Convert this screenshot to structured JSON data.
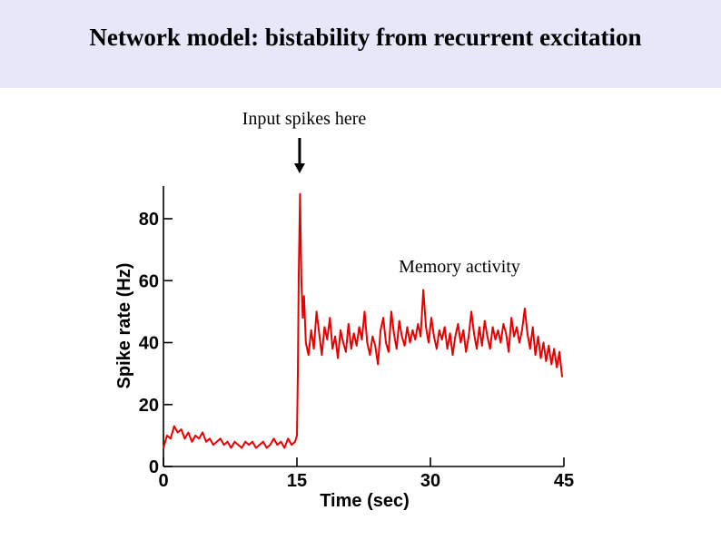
{
  "slide": {
    "title": "Network model: bistability from recurrent excitation",
    "input_annotation": "Input spikes here",
    "memory_annotation": "Memory activity",
    "colors": {
      "band": "#e6e8fa",
      "trace": "#e80000",
      "axis": "#000000"
    }
  },
  "chart_data": {
    "type": "line",
    "title": "",
    "xlabel": "Time (sec)",
    "ylabel": "Spike rate (Hz)",
    "xlim": [
      0,
      45
    ],
    "ylim": [
      0,
      90
    ],
    "x_ticks": [
      0,
      15,
      30,
      45
    ],
    "x_tick_labels": [
      "0",
      "15",
      "30",
      "45"
    ],
    "y_ticks": [
      0,
      20,
      40,
      60,
      80
    ],
    "y_tick_labels": [
      "0",
      "20",
      "40",
      "60",
      "80"
    ],
    "grid": false,
    "annotations": [
      {
        "text": "Input spikes here",
        "x": 15.3,
        "kind": "arrow-down"
      },
      {
        "text": "Memory activity",
        "kind": "label"
      }
    ],
    "series": [
      {
        "name": "Spike rate",
        "color": "#e80000",
        "points": [
          [
            0.0,
            6
          ],
          [
            0.4,
            10
          ],
          [
            0.8,
            9
          ],
          [
            1.2,
            13
          ],
          [
            1.6,
            11
          ],
          [
            2.0,
            12
          ],
          [
            2.4,
            9
          ],
          [
            2.8,
            11
          ],
          [
            3.2,
            8
          ],
          [
            3.6,
            10
          ],
          [
            4.0,
            9
          ],
          [
            4.4,
            11
          ],
          [
            4.8,
            8
          ],
          [
            5.2,
            9
          ],
          [
            5.6,
            7
          ],
          [
            6.0,
            8
          ],
          [
            6.4,
            9
          ],
          [
            6.8,
            7
          ],
          [
            7.2,
            8
          ],
          [
            7.6,
            6
          ],
          [
            8.0,
            8
          ],
          [
            8.4,
            7
          ],
          [
            8.8,
            6
          ],
          [
            9.2,
            8
          ],
          [
            9.6,
            7
          ],
          [
            10.0,
            8
          ],
          [
            10.4,
            6
          ],
          [
            10.8,
            7
          ],
          [
            11.2,
            8
          ],
          [
            11.6,
            6
          ],
          [
            12.0,
            7
          ],
          [
            12.4,
            9
          ],
          [
            12.8,
            7
          ],
          [
            13.2,
            8
          ],
          [
            13.6,
            6
          ],
          [
            14.0,
            9
          ],
          [
            14.4,
            7
          ],
          [
            14.8,
            8
          ],
          [
            15.0,
            10
          ],
          [
            15.1,
            30
          ],
          [
            15.2,
            62
          ],
          [
            15.35,
            88
          ],
          [
            15.5,
            60
          ],
          [
            15.65,
            48
          ],
          [
            15.8,
            55
          ],
          [
            16.0,
            40
          ],
          [
            16.3,
            36
          ],
          [
            16.6,
            44
          ],
          [
            16.9,
            38
          ],
          [
            17.2,
            50
          ],
          [
            17.5,
            43
          ],
          [
            17.8,
            36
          ],
          [
            18.1,
            45
          ],
          [
            18.4,
            41
          ],
          [
            18.7,
            48
          ],
          [
            19.0,
            38
          ],
          [
            19.3,
            42
          ],
          [
            19.6,
            35
          ],
          [
            19.9,
            44
          ],
          [
            20.2,
            40
          ],
          [
            20.5,
            37
          ],
          [
            20.8,
            46
          ],
          [
            21.1,
            38
          ],
          [
            21.4,
            43
          ],
          [
            21.7,
            39
          ],
          [
            22.0,
            45
          ],
          [
            22.3,
            41
          ],
          [
            22.6,
            50
          ],
          [
            22.9,
            40
          ],
          [
            23.2,
            36
          ],
          [
            23.5,
            42
          ],
          [
            23.8,
            39
          ],
          [
            24.1,
            33
          ],
          [
            24.4,
            44
          ],
          [
            24.7,
            48
          ],
          [
            25.0,
            40
          ],
          [
            25.3,
            37
          ],
          [
            25.6,
            50
          ],
          [
            25.9,
            43
          ],
          [
            26.2,
            38
          ],
          [
            26.5,
            47
          ],
          [
            26.8,
            42
          ],
          [
            27.1,
            39
          ],
          [
            27.4,
            45
          ],
          [
            27.7,
            40
          ],
          [
            28.0,
            44
          ],
          [
            28.3,
            41
          ],
          [
            28.6,
            46
          ],
          [
            28.9,
            42
          ],
          [
            29.2,
            57
          ],
          [
            29.5,
            45
          ],
          [
            29.8,
            40
          ],
          [
            30.1,
            48
          ],
          [
            30.4,
            42
          ],
          [
            30.7,
            38
          ],
          [
            31.0,
            44
          ],
          [
            31.3,
            41
          ],
          [
            31.6,
            45
          ],
          [
            31.9,
            38
          ],
          [
            32.2,
            43
          ],
          [
            32.5,
            36
          ],
          [
            32.8,
            42
          ],
          [
            33.1,
            46
          ],
          [
            33.4,
            40
          ],
          [
            33.7,
            44
          ],
          [
            34.0,
            37
          ],
          [
            34.3,
            42
          ],
          [
            34.6,
            50
          ],
          [
            34.9,
            43
          ],
          [
            35.2,
            38
          ],
          [
            35.5,
            45
          ],
          [
            35.8,
            39
          ],
          [
            36.1,
            47
          ],
          [
            36.4,
            42
          ],
          [
            36.7,
            38
          ],
          [
            37.0,
            45
          ],
          [
            37.3,
            41
          ],
          [
            37.6,
            44
          ],
          [
            37.9,
            40
          ],
          [
            38.2,
            46
          ],
          [
            38.5,
            43
          ],
          [
            38.8,
            37
          ],
          [
            39.1,
            48
          ],
          [
            39.4,
            42
          ],
          [
            39.7,
            45
          ],
          [
            40.0,
            40
          ],
          [
            40.3,
            44
          ],
          [
            40.6,
            51
          ],
          [
            40.9,
            43
          ],
          [
            41.2,
            38
          ],
          [
            41.5,
            45
          ],
          [
            41.8,
            36
          ],
          [
            42.1,
            42
          ],
          [
            42.4,
            35
          ],
          [
            42.7,
            40
          ],
          [
            43.0,
            34
          ],
          [
            43.3,
            39
          ],
          [
            43.6,
            33
          ],
          [
            43.9,
            38
          ],
          [
            44.2,
            32
          ],
          [
            44.5,
            37
          ],
          [
            44.8,
            29
          ]
        ]
      }
    ]
  }
}
